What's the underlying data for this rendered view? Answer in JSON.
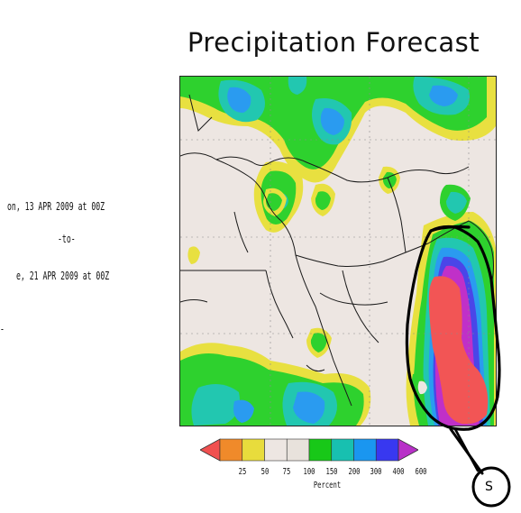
{
  "title": "Precipitation Forecast",
  "period": {
    "from": "on, 13 APR 2009 at 00Z",
    "separator": "-to-",
    "to": "e, 21 APR 2009 at 00Z",
    "stray_mark": "-"
  },
  "legend": {
    "tick_labels": [
      "25",
      "50",
      "75",
      "100",
      "150",
      "200",
      "300",
      "400",
      "600"
    ],
    "unit": "Percent",
    "colors": [
      "#f05050",
      "#f08a2a",
      "#e8dc3c",
      "#ede6e2",
      "#e8e2dc",
      "#18c818",
      "#18c0b0",
      "#1a96f0",
      "#3838f0",
      "#b830c8"
    ]
  },
  "map": {
    "background_color": "#ede6e2",
    "palette": {
      "dry": "#ede6e2",
      "yellow": "#e8e040",
      "green": "#2ed12e",
      "teal": "#22c7b0",
      "blue": "#2a9bf0",
      "violet": "#4a46e8",
      "magenta": "#c030c8",
      "red": "#f25555"
    }
  },
  "annotation": {
    "label": "S",
    "color": "#000000"
  }
}
